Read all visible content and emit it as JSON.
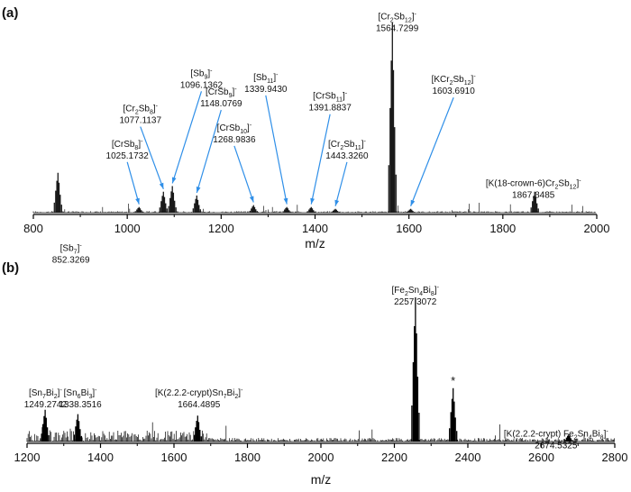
{
  "chart_data": [
    {
      "type": "line",
      "panel_label": "(a)",
      "xlabel": "m/z",
      "ylabel": "",
      "xlim": [
        800,
        2000
      ],
      "ylim": [
        0,
        100
      ],
      "xticks": [
        800,
        1000,
        1200,
        1400,
        1600,
        1800,
        2000
      ],
      "colors": {
        "trace": "#1a1a1a",
        "arrow": "#2f8fe8",
        "axis": "#000000"
      },
      "peaks": [
        {
          "mz": 852.3269,
          "intensity": 21,
          "species": "[Sb",
          "sub": "7",
          "charge": "-",
          "mass_text": "852.3269",
          "arrow": false,
          "lx": 880,
          "ly": 2280
        },
        {
          "mz": 1025.1732,
          "intensity": 3,
          "species": "[CrSb",
          "sub": "8",
          "charge": "-",
          "mass_text": "1025.1732",
          "arrow": true,
          "lx": 1000,
          "ly": 1280
        },
        {
          "mz": 1077.1137,
          "intensity": 11,
          "species": "[Cr",
          "sub": "2",
          "sub_after": "Sb",
          "sub2": "8",
          "charge": "-",
          "mass_text": "1077.1137",
          "arrow": true,
          "lx": 1028,
          "ly": 940
        },
        {
          "mz": 1096.1362,
          "intensity": 14,
          "species": "[Sb",
          "sub": "9",
          "charge": "-",
          "mass_text": "1096.1362",
          "arrow": true,
          "lx": 1158,
          "ly": 600
        },
        {
          "mz": 1148.0769,
          "intensity": 9,
          "species": "[CrSb",
          "sub": "9",
          "charge": "-",
          "mass_text": "1148.0769",
          "arrow": true,
          "lx": 1200,
          "ly": 780
        },
        {
          "mz": 1268.9836,
          "intensity": 4,
          "species": "[CrSb",
          "sub": "10",
          "charge": "-",
          "mass_text": "1268.9836",
          "arrow": true,
          "lx": 1228,
          "ly": 1125
        },
        {
          "mz": 1339.943,
          "intensity": 3,
          "species": "[Sb",
          "sub": "11",
          "charge": "-",
          "mass_text": "1339.9430",
          "arrow": true,
          "lx": 1295,
          "ly": 640
        },
        {
          "mz": 1391.8837,
          "intensity": 3,
          "species": "[CrSb",
          "sub": "11",
          "charge": "-",
          "mass_text": "1391.8837",
          "arrow": true,
          "lx": 1432,
          "ly": 820
        },
        {
          "mz": 1443.326,
          "intensity": 2,
          "species": "[Cr",
          "sub": "2",
          "sub_after": "Sb",
          "sub2": "11",
          "charge": "-",
          "mass_text": "1443.3260",
          "arrow": true,
          "lx": 1468,
          "ly": 1280
        },
        {
          "mz": 1564.7299,
          "intensity": 100,
          "species": "[Cr",
          "sub": "2",
          "sub_after": "Sb",
          "sub2": "12",
          "charge": "-",
          "mass_text": "1564.7299",
          "arrow": false,
          "lx": 1575,
          "ly": 58
        },
        {
          "mz": 1603.691,
          "intensity": 2,
          "species": "[KCr",
          "sub": "2",
          "sub_after": "Sb",
          "sub2": "12",
          "charge": "-",
          "mass_text": "1603.6910",
          "arrow": true,
          "lx": 1695,
          "ly": 660
        },
        {
          "mz": 1867.8485,
          "intensity": 11,
          "species": "[K(18-crown-6)Cr",
          "sub": "2",
          "sub_after": "Sb",
          "sub2": "12",
          "charge": "-",
          "mass_text": "1867.8485",
          "arrow": false,
          "lx": 1865,
          "ly": 1660
        }
      ]
    },
    {
      "type": "line",
      "panel_label": "(b)",
      "xlabel": "m/z",
      "ylabel": "",
      "xlim": [
        1200,
        2800
      ],
      "ylim": [
        0,
        100
      ],
      "xticks": [
        1200,
        1400,
        1600,
        1800,
        2000,
        2200,
        2400,
        2600,
        2800
      ],
      "colors": {
        "trace": "#000000",
        "axis": "#000000"
      },
      "peaks": [
        {
          "mz": 1249.2742,
          "intensity": 22,
          "species": "[Sn",
          "sub": "7",
          "sub_after": "Bi",
          "sub2": "2",
          "charge": "-",
          "mass_text": "1249.2742",
          "lx": 1250,
          "ly": 1320
        },
        {
          "mz": 1338.3516,
          "intensity": 19,
          "species": "[Sn",
          "sub": "6",
          "sub_after": "Bi",
          "sub2": "3",
          "charge": "-",
          "mass_text": "1338.3516",
          "lx": 1345,
          "ly": 1320
        },
        {
          "mz": 1664.4895,
          "intensity": 18,
          "species": "[K(2.2.2-crypt)Sn",
          "sub": "7",
          "sub_after": "Bi",
          "sub2": "2",
          "charge": "-",
          "mass_text": "1664.4895",
          "lx": 1668,
          "ly": 1320
        },
        {
          "mz": 2257.3072,
          "intensity": 100,
          "species": "[Fe",
          "sub": "2",
          "sub_after": "Sn",
          "sub2": "4",
          "sub_after2": "Bi",
          "sub3": "8",
          "charge": "-",
          "mass_text": "2257.3072",
          "lx": 2257,
          "ly": 58
        },
        {
          "mz": 2360,
          "intensity": 37,
          "star": "*",
          "species": "",
          "mass_text": ""
        },
        {
          "mz": 2674.5325,
          "intensity": 5,
          "species": "[K(2.2.2-crypt) Fe",
          "sub": "2",
          "sub_after": "Sn",
          "sub2": "4",
          "sub_after2": "Bi",
          "sub3": "8",
          "charge": "-",
          "mass_text": "2674.5325",
          "lx": 2640,
          "ly": 1830
        }
      ]
    }
  ]
}
